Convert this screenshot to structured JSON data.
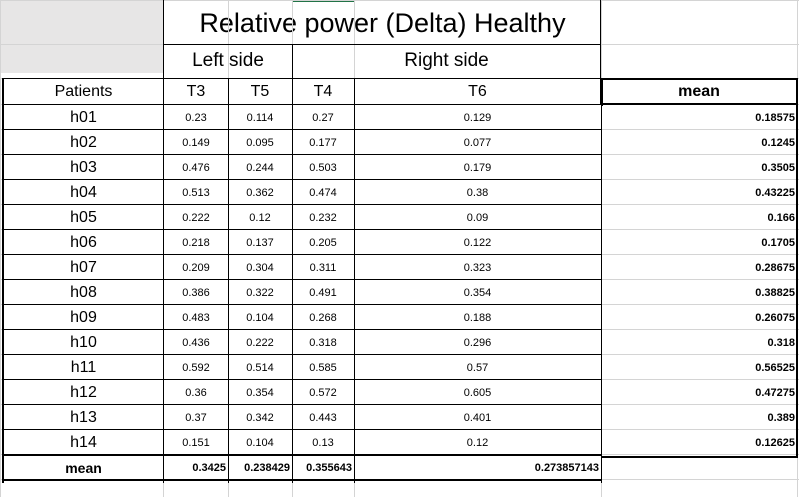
{
  "title": "Relative power (Delta) Healthy",
  "groups": {
    "left": "Left side",
    "right": "Right side"
  },
  "columns": [
    "Patients",
    "T3",
    "T5",
    "T4",
    "T6",
    "mean"
  ],
  "rows": [
    [
      "h01",
      "0.23",
      "0.114",
      "0.27",
      "0.129",
      "0.18575"
    ],
    [
      "h02",
      "0.149",
      "0.095",
      "0.177",
      "0.077",
      "0.1245"
    ],
    [
      "h03",
      "0.476",
      "0.244",
      "0.503",
      "0.179",
      "0.3505"
    ],
    [
      "h04",
      "0.513",
      "0.362",
      "0.474",
      "0.38",
      "0.43225"
    ],
    [
      "h05",
      "0.222",
      "0.12",
      "0.232",
      "0.09",
      "0.166"
    ],
    [
      "h06",
      "0.218",
      "0.137",
      "0.205",
      "0.122",
      "0.1705"
    ],
    [
      "h07",
      "0.209",
      "0.304",
      "0.311",
      "0.323",
      "0.28675"
    ],
    [
      "h08",
      "0.386",
      "0.322",
      "0.491",
      "0.354",
      "0.38825"
    ],
    [
      "h09",
      "0.483",
      "0.104",
      "0.268",
      "0.188",
      "0.26075"
    ],
    [
      "h10",
      "0.436",
      "0.222",
      "0.318",
      "0.296",
      "0.318"
    ],
    [
      "h11",
      "0.592",
      "0.514",
      "0.585",
      "0.57",
      "0.56525"
    ],
    [
      "h12",
      "0.36",
      "0.354",
      "0.572",
      "0.605",
      "0.47275"
    ],
    [
      "h13",
      "0.37",
      "0.342",
      "0.443",
      "0.401",
      "0.389"
    ],
    [
      "h14",
      "0.151",
      "0.104",
      "0.13",
      "0.12",
      "0.12625"
    ]
  ],
  "mean_row": [
    "mean",
    "0.3425",
    "0.238429",
    "0.355643",
    "0.273857143"
  ]
}
